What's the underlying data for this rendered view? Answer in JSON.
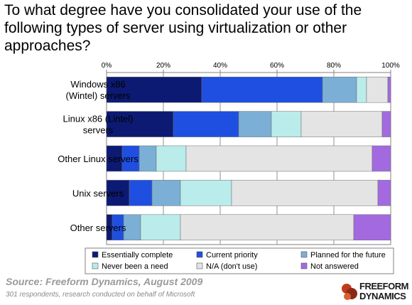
{
  "chart_data": {
    "type": "bar",
    "orientation": "horizontal",
    "stacked": true,
    "title": "To what degree have you consolidated your use of the following types of server using virtualization or other approaches?",
    "categories": [
      [
        "Windows x86",
        "(Wintel) servers"
      ],
      [
        "Linux x86 (Lintel)",
        "servers"
      ],
      [
        "Other Linux servers"
      ],
      [
        "Unix servers"
      ],
      [
        "Other servers"
      ]
    ],
    "series": [
      {
        "name": "Essentially complete",
        "color": "#0c1a73",
        "values": [
          33.5,
          23.5,
          5.5,
          8,
          2
        ]
      },
      {
        "name": "Current priority",
        "color": "#1f4fe0",
        "values": [
          42.5,
          23,
          6,
          8,
          4
        ]
      },
      {
        "name": "Planned for the future",
        "color": "#7bafd6",
        "values": [
          12,
          11.5,
          6,
          10,
          6
        ]
      },
      {
        "name": "Never been a need",
        "color": "#b9ecea",
        "values": [
          3.5,
          10.5,
          10.5,
          18,
          14
        ]
      },
      {
        "name": "N/A (don't use)",
        "color": "#e4e4e4",
        "values": [
          7.5,
          28.5,
          65.5,
          51.5,
          61
        ]
      },
      {
        "name": "Not answered",
        "color": "#a36ae0",
        "values": [
          1,
          3,
          6.5,
          4.5,
          13
        ]
      }
    ],
    "xlim": [
      0,
      100
    ],
    "xticks": [
      "0%",
      "20%",
      "40%",
      "60%",
      "80%",
      "100%"
    ],
    "xlabel": "",
    "ylabel": "",
    "grid": true,
    "legend_position": "bottom"
  },
  "footer": {
    "source": "Source: Freeform Dynamics, August 2009",
    "note": "301 respondents, research conducted on behalf of Microsoft"
  },
  "logo": {
    "line1": "FREEFORM",
    "line2": "DYNAMICS"
  }
}
